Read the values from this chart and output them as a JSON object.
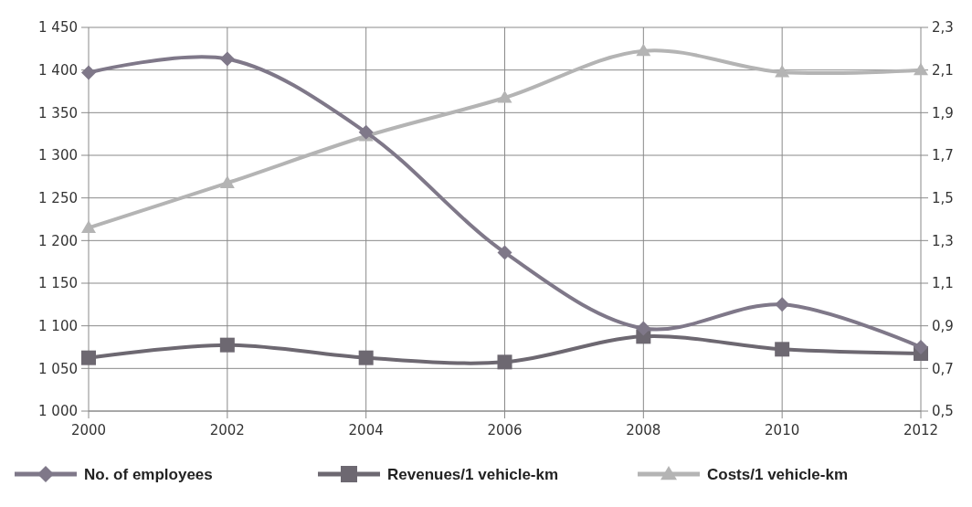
{
  "chart_data": {
    "type": "line",
    "x": [
      2000,
      2002,
      2004,
      2006,
      2008,
      2010,
      2012
    ],
    "xlim": [
      2000,
      2012
    ],
    "xticks": [
      2000,
      2002,
      2004,
      2006,
      2008,
      2010,
      2012
    ],
    "ylim": [
      1000,
      1450
    ],
    "yticks": [
      {
        "value": 1000,
        "label": "1 000"
      },
      {
        "value": 1050,
        "label": "1 050"
      },
      {
        "value": 1100,
        "label": "1 100"
      },
      {
        "value": 1150,
        "label": "1 150"
      },
      {
        "value": 1200,
        "label": "1 200"
      },
      {
        "value": 1250,
        "label": "1 250"
      },
      {
        "value": 1300,
        "label": "1 300"
      },
      {
        "value": 1350,
        "label": "1 350"
      },
      {
        "value": 1400,
        "label": "1 400"
      },
      {
        "value": 1450,
        "label": "1 450"
      }
    ],
    "y2lim": [
      0.5,
      2.3
    ],
    "y2ticks": [
      {
        "value": 0.5,
        "label": "0,5"
      },
      {
        "value": 0.7,
        "label": "0,7"
      },
      {
        "value": 0.9,
        "label": "0,9"
      },
      {
        "value": 1.1,
        "label": "1,1"
      },
      {
        "value": 1.3,
        "label": "1,3"
      },
      {
        "value": 1.5,
        "label": "1,5"
      },
      {
        "value": 1.7,
        "label": "1,7"
      },
      {
        "value": 1.9,
        "label": "1,9"
      },
      {
        "value": 2.1,
        "label": "2,1"
      },
      {
        "value": 2.3,
        "label": "2,3"
      }
    ],
    "grid": true,
    "legend": "bottom",
    "series": [
      {
        "name": "No. of employees",
        "color": "#7f7889",
        "marker": "diamond",
        "values": [
          1397,
          1413,
          1327,
          1186,
          1097,
          1125,
          1075
        ]
      },
      {
        "name": "Revenues/1 vehicle-km",
        "color": "#6d6871",
        "marker": "square",
        "axis": "y2",
        "values": [
          0.75,
          0.81,
          0.75,
          0.73,
          0.85,
          0.79,
          0.77
        ]
      },
      {
        "name": "Costs/1 vehicle-km",
        "color": "#b4b4b4",
        "marker": "triangle",
        "axis": "y2",
        "values": [
          1.36,
          1.57,
          1.79,
          1.97,
          2.19,
          2.09,
          2.1
        ]
      }
    ]
  }
}
